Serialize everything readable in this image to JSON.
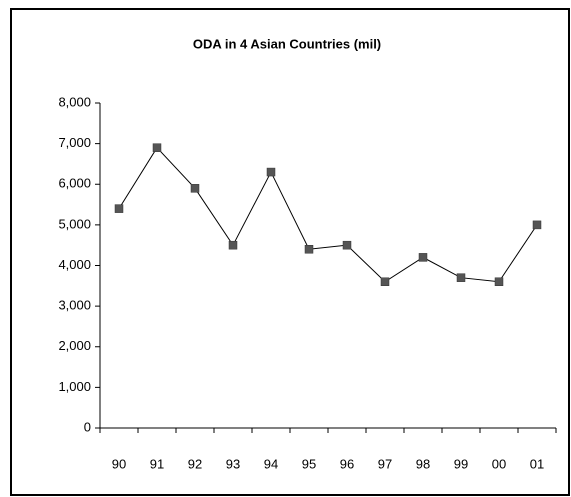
{
  "chart_data": {
    "type": "line",
    "title": "ODA in 4 Asian Countries (mil)",
    "categories": [
      "90",
      "91",
      "92",
      "93",
      "94",
      "95",
      "96",
      "97",
      "98",
      "99",
      "00",
      "01"
    ],
    "series": [
      {
        "color": "#000000",
        "marker_color": "#555555",
        "values": [
          5400,
          6900,
          5900,
          4500,
          6300,
          4400,
          4500,
          3600,
          4200,
          3700,
          3600,
          5000
        ]
      }
    ],
    "ylim": [
      0,
      8000
    ],
    "yticks": [
      0,
      {
        "value": 1000,
        "label": "1,000"
      },
      {
        "value": 2000,
        "label": "2,000"
      },
      {
        "value": 3000,
        "label": "3,000"
      },
      {
        "value": 4000,
        "label": "4,000"
      },
      {
        "value": 5000,
        "label": "5,000"
      },
      {
        "value": 6000,
        "label": "6,000"
      },
      {
        "value": 7000,
        "label": "7,000"
      },
      {
        "value": 8000,
        "label": "8,000"
      }
    ],
    "grid": false
  }
}
